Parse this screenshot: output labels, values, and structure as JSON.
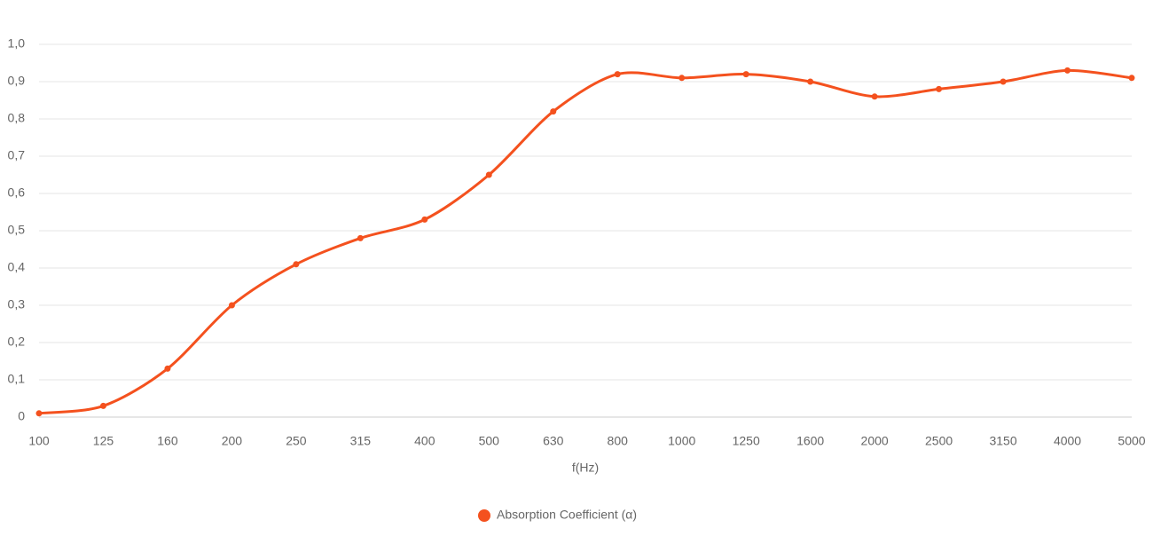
{
  "chart_data": {
    "type": "line",
    "categories": [
      "100",
      "125",
      "160",
      "200",
      "250",
      "315",
      "400",
      "500",
      "630",
      "800",
      "1000",
      "1250",
      "1600",
      "2000",
      "2500",
      "3150",
      "4000",
      "5000"
    ],
    "series": [
      {
        "name": "Absorption Coefficient (α)",
        "color": "#f4511e",
        "values": [
          0.01,
          0.03,
          0.13,
          0.3,
          0.41,
          0.48,
          0.53,
          0.65,
          0.82,
          0.92,
          0.91,
          0.92,
          0.9,
          0.86,
          0.88,
          0.9,
          0.93,
          0.91
        ]
      }
    ],
    "x_label": "f(Hz)",
    "ylim": [
      0,
      1.0
    ],
    "yticks": [
      0,
      {
        "value": 0.1,
        "label": "0,1"
      },
      {
        "value": 0.2,
        "label": "0,2"
      },
      {
        "value": 0.3,
        "label": "0,3"
      },
      {
        "value": 0.4,
        "label": "0,4"
      },
      {
        "value": 0.5,
        "label": "0,5"
      },
      {
        "value": 0.6,
        "label": "0,6"
      },
      {
        "value": 0.7,
        "label": "0,7"
      },
      {
        "value": 0.8,
        "label": "0,8"
      },
      {
        "value": 0.9,
        "label": "0,9"
      },
      {
        "value": 1.0,
        "label": "1,0"
      }
    ],
    "grid": true
  }
}
